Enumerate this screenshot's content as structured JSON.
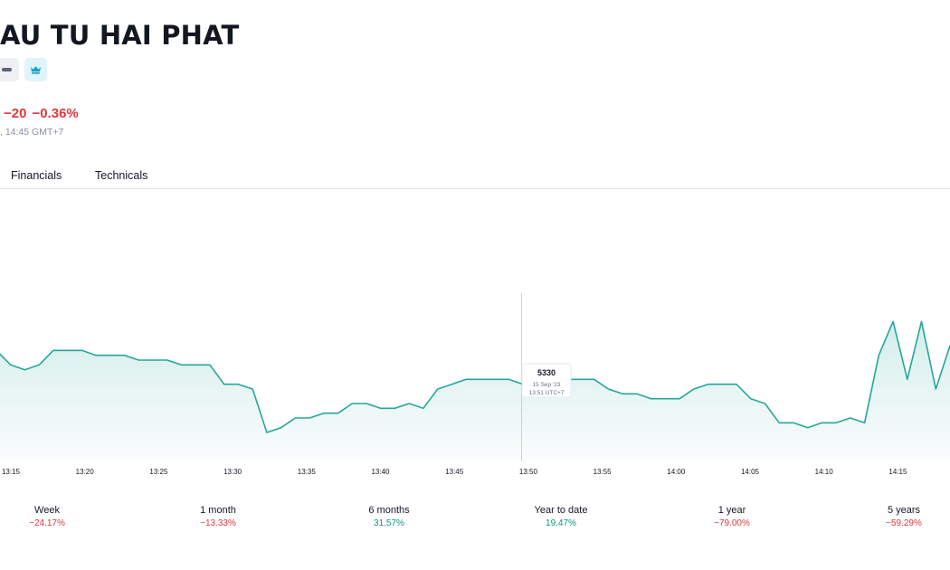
{
  "header": {
    "title": "AU TU HAI PHAT",
    "change_abs": "−20",
    "change_pct": "−0.36%",
    "time": ", 14:45 GMT+7"
  },
  "tabs": [
    {
      "label": "Financials"
    },
    {
      "label": "Technicals"
    }
  ],
  "icons": {
    "badge1": "minus-icon",
    "badge2": "crown-icon"
  },
  "colors": {
    "line": "#26a69a",
    "negative": "#e0373d",
    "positive": "#089981"
  },
  "chart_data": {
    "type": "area",
    "x_ticks": [
      "13:15",
      "13:20",
      "13:25",
      "13:30",
      "13:35",
      "13:40",
      "13:45",
      "13:50",
      "13:55",
      "14:00",
      "14:05",
      "14:10",
      "14:15"
    ],
    "ylim": [
      5150,
      5600
    ],
    "series": [
      {
        "values": [
          5380,
          5350,
          5340,
          5350,
          5380,
          5380,
          5380,
          5370,
          5370,
          5370,
          5360,
          5360,
          5360,
          5350,
          5350,
          5350,
          5310,
          5310,
          5300,
          5210,
          5220,
          5240,
          5240,
          5250,
          5250,
          5270,
          5270,
          5260,
          5260,
          5270,
          5260,
          5300,
          5310,
          5320,
          5320,
          5320,
          5320,
          5310,
          5320,
          5330,
          5320,
          5320,
          5320,
          5300,
          5290,
          5290,
          5280,
          5280,
          5280,
          5300,
          5310,
          5310,
          5310,
          5280,
          5270,
          5230,
          5230,
          5220,
          5230,
          5230,
          5240,
          5230,
          5370,
          5440,
          5320,
          5440,
          5300,
          5390
        ]
      }
    ],
    "tooltip": {
      "value": "5330",
      "date": "15 Sep '23",
      "time": "13:51 UTC+7"
    }
  },
  "performance": [
    {
      "label": "Week",
      "value": "−24.17%",
      "sign": "neg"
    },
    {
      "label": "1 month",
      "value": "−13.33%",
      "sign": "neg"
    },
    {
      "label": "6 months",
      "value": "31.57%",
      "sign": "pos"
    },
    {
      "label": "Year to date",
      "value": "19.47%",
      "sign": "pos"
    },
    {
      "label": "1 year",
      "value": "−79.00%",
      "sign": "neg"
    },
    {
      "label": "5 years",
      "value": "−59.29%",
      "sign": "neg"
    }
  ]
}
